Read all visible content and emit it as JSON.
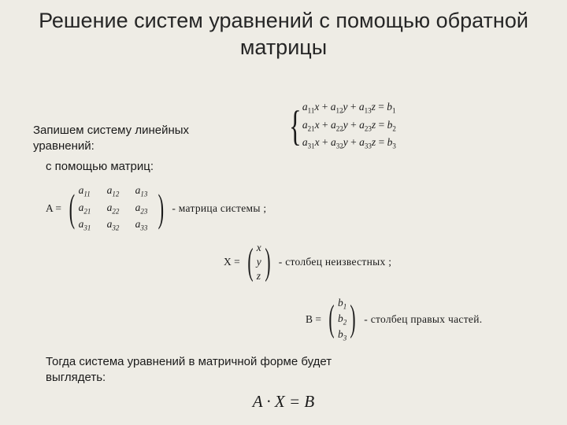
{
  "title": "Решение систем уравнений с помощью обратной матрицы",
  "intro1": "Запишем систему линейных уравнений:",
  "intro2": "с помощью матриц:",
  "system": {
    "rows": [
      "a₁₁x + a₁₂y + a₁₃z = b₁",
      "a₂₁x + a₂₂y + a₂₃z = b₂",
      "a₃₁x + a₃₂y + a₃₃z = b₃"
    ]
  },
  "matrixA": {
    "label": "A =",
    "rows": [
      [
        "a₁₁",
        "a₁₂",
        "a₁₃"
      ],
      [
        "a₂₁",
        "a₂₂",
        "a₂₃"
      ],
      [
        "a₃₁",
        "a₃₂",
        "a₃₃"
      ]
    ],
    "desc": "- матрица системы ;"
  },
  "matrixX": {
    "label": "X =",
    "rows": [
      "x",
      "y",
      "z"
    ],
    "desc": "- столбец неизвестных ;"
  },
  "matrixB": {
    "label": "B =",
    "rows": [
      "b₁",
      "b₂",
      "b₃"
    ],
    "desc": "- столбец правых частей."
  },
  "intro3": "Тогда система уравнений в матричной форме будет выглядеть:",
  "finalEq": "A · X = B",
  "colors": {
    "background": "#eeece5",
    "text": "#1a1a1a",
    "title": "#262626"
  },
  "typography": {
    "title_fontsize": 27,
    "body_fontsize": 15,
    "math_fontsize": 13.5,
    "final_fontsize": 21
  }
}
